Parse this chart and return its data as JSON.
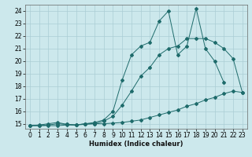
{
  "xlabel": "Humidex (Indice chaleur)",
  "bg_color": "#cce8ec",
  "line_color": "#1e6b6b",
  "xlim": [
    -0.5,
    23.5
  ],
  "ylim": [
    14.6,
    24.5
  ],
  "xticks": [
    0,
    1,
    2,
    3,
    4,
    5,
    6,
    7,
    8,
    9,
    10,
    11,
    12,
    13,
    14,
    15,
    16,
    17,
    18,
    19,
    20,
    21,
    22,
    23
  ],
  "yticks": [
    15,
    16,
    17,
    18,
    19,
    20,
    21,
    22,
    23,
    24
  ],
  "grid_color": "#aacdd4",
  "lines": [
    {
      "x": [
        0,
        1,
        2,
        3,
        4,
        5,
        6,
        7,
        8,
        9,
        10,
        11,
        12,
        13,
        14,
        15,
        16,
        17,
        18,
        19,
        20,
        21,
        22,
        23
      ],
      "y": [
        14.85,
        14.85,
        14.85,
        14.85,
        14.9,
        14.9,
        14.95,
        15.0,
        15.0,
        15.05,
        15.1,
        15.2,
        15.3,
        15.5,
        15.7,
        15.9,
        16.1,
        16.4,
        16.6,
        16.9,
        17.1,
        17.4,
        17.6,
        17.5
      ]
    },
    {
      "x": [
        0,
        1,
        2,
        3,
        4,
        5,
        6,
        7,
        8,
        9,
        10,
        11,
        12,
        13,
        14,
        15,
        16,
        17,
        18,
        19,
        20,
        21,
        22,
        23
      ],
      "y": [
        14.85,
        14.85,
        14.9,
        15.0,
        14.95,
        14.9,
        15.0,
        15.0,
        15.2,
        15.6,
        16.5,
        17.6,
        18.8,
        19.5,
        20.5,
        21.0,
        21.2,
        21.8,
        21.8,
        21.8,
        21.5,
        21.0,
        20.2,
        17.5
      ]
    },
    {
      "x": [
        0,
        1,
        2,
        3,
        4,
        5,
        6,
        7,
        8,
        9,
        10,
        11,
        12,
        13,
        14,
        15,
        16,
        17,
        18,
        19,
        20,
        21
      ],
      "y": [
        14.85,
        14.9,
        15.0,
        15.1,
        14.95,
        14.9,
        15.0,
        15.1,
        15.3,
        16.0,
        18.5,
        20.5,
        21.2,
        21.5,
        23.2,
        24.0,
        20.5,
        21.2,
        24.2,
        21.0,
        20.0,
        18.3
      ]
    }
  ]
}
